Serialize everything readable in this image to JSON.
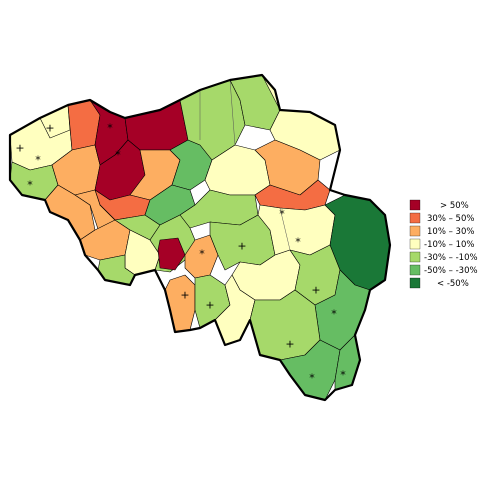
{
  "legend": {
    "items": [
      {
        "label": "> 50%",
        "color": "#a50026"
      },
      {
        "label": "30% –  50%",
        "color": "#f46d43"
      },
      {
        "label": "10% –  30%",
        "color": "#fdae61"
      },
      {
        "label": "-10% –  10%",
        "color": "#ffffbf"
      },
      {
        "label": "-30% – -10%",
        "color": "#a6d96a"
      },
      {
        "label": "-50% – -30%",
        "color": "#66bd63"
      },
      {
        "label": "< -50%",
        "color": "#1a7837"
      }
    ]
  },
  "markers": {
    "plus": "+",
    "star": "*"
  }
}
